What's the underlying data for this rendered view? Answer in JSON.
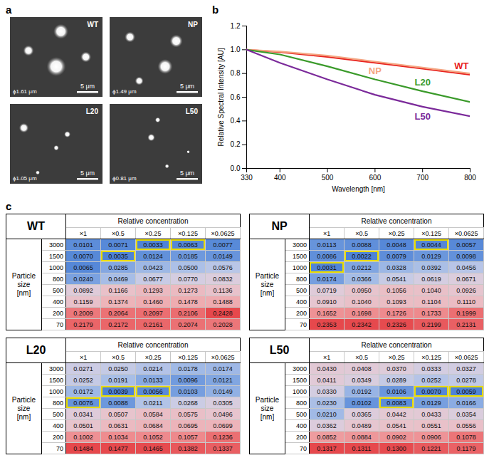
{
  "panel_labels": [
    "a",
    "b",
    "c"
  ],
  "panel_a": {
    "images": [
      {
        "name": "WT",
        "diameter": "ϕ1.61 μm",
        "scale_bar": "5 μm"
      },
      {
        "name": "NP",
        "diameter": "ϕ1.49 μm",
        "scale_bar": "5 μm"
      },
      {
        "name": "L20",
        "diameter": "ϕ1.05 μm",
        "scale_bar": "5 μm"
      },
      {
        "name": "L50",
        "diameter": "ϕ0.81 μm",
        "scale_bar": "5 μm"
      }
    ]
  },
  "chart_data": {
    "type": "line",
    "xlabel": "Wavelength [nm]",
    "ylabel": "Relative Spectral Intensity [AU]",
    "x": [
      330,
      400,
      500,
      600,
      700,
      800
    ],
    "xlim": [
      330,
      800
    ],
    "xticks": [
      330,
      400,
      500,
      600,
      700,
      800
    ],
    "ylim": [
      0,
      1.2
    ],
    "yticks": [
      {
        "value": 0,
        "label": "0.0"
      },
      0.2,
      0.4,
      0.6,
      0.8,
      {
        "value": 1,
        "label": "1.0"
      },
      1.2
    ],
    "grid": false,
    "series": [
      {
        "name": "WT",
        "color": "#e8231f",
        "values": [
          1.0,
          0.98,
          0.94,
          0.89,
          0.84,
          0.79
        ]
      },
      {
        "name": "NP",
        "color": "#f4a582",
        "values": [
          1.0,
          0.985,
          0.95,
          0.9,
          0.85,
          0.8
        ]
      },
      {
        "name": "L20",
        "color": "#3a9a2a",
        "values": [
          1.0,
          0.96,
          0.86,
          0.75,
          0.65,
          0.56
        ]
      },
      {
        "name": "L50",
        "color": "#7b2a9a",
        "values": [
          1.0,
          0.89,
          0.75,
          0.62,
          0.52,
          0.44
        ]
      }
    ]
  },
  "panel_c": {
    "column_header": "Relative concentration",
    "columns": [
      "×1",
      "×0.5",
      "×0.25",
      "×0.125",
      "×0.0625"
    ],
    "row_header": "Particle size [nm]",
    "rows": [
      "3000",
      "1500",
      "1000",
      "800",
      "500",
      "400",
      "200",
      "70"
    ],
    "tables": [
      {
        "title": "WT",
        "cells": [
          [
            "0.0101",
            "0.0071",
            "0.0033",
            "0.0063",
            "0.0077"
          ],
          [
            "0.0070",
            "0.0035",
            "0.0124",
            "0.0185",
            "0.0149"
          ],
          [
            "0.0065",
            "0.0285",
            "0.0423",
            "0.0500",
            "0.0576"
          ],
          [
            "0.0240",
            "0.0469",
            "0.0677",
            "0.0770",
            "0.0832"
          ],
          [
            "0.0892",
            "0.1166",
            "0.1293",
            "0.1273",
            "0.1136"
          ],
          [
            "0.1159",
            "0.1374",
            "0.1460",
            "0.1478",
            "0.1488"
          ],
          [
            "0.2009",
            "0.2064",
            "0.2097",
            "0.2106",
            "0.2428"
          ],
          [
            "0.2179",
            "0.2172",
            "0.2161",
            "0.2074",
            "0.2028"
          ]
        ],
        "highlighted": [
          [
            1,
            1
          ],
          [
            0,
            2
          ],
          [
            0,
            3
          ]
        ]
      },
      {
        "title": "NP",
        "cells": [
          [
            "0.0113",
            "0.0088",
            "0.0048",
            "0.0044",
            "0.0057"
          ],
          [
            "0.0086",
            "0.0022",
            "0.0079",
            "0.0129",
            "0.0098"
          ],
          [
            "0.0031",
            "0.0212",
            "0.0328",
            "0.0392",
            "0.0456"
          ],
          [
            "0.0174",
            "0.0366",
            "0.0541",
            "0.0619",
            "0.0671"
          ],
          [
            "0.0719",
            "0.0950",
            "0.1056",
            "0.1040",
            "0.0926"
          ],
          [
            "0.0910",
            "0.1040",
            "0.1093",
            "0.1104",
            "0.1110"
          ],
          [
            "0.1652",
            "0.1698",
            "0.1726",
            "0.1733",
            "0.1999"
          ],
          [
            "0.2353",
            "0.2342",
            "0.2326",
            "0.2199",
            "0.2131"
          ]
        ],
        "highlighted": [
          [
            0,
            3
          ],
          [
            1,
            1
          ],
          [
            2,
            0
          ]
        ]
      },
      {
        "title": "L20",
        "cells": [
          [
            "0.0271",
            "0.0250",
            "0.0214",
            "0.0178",
            "0.0174"
          ],
          [
            "0.0252",
            "0.0191",
            "0.0133",
            "0.0096",
            "0.0121"
          ],
          [
            "0.0172",
            "0.0039",
            "0.0056",
            "0.0103",
            "0.0149"
          ],
          [
            "0.0076",
            "0.0088",
            "0.0211",
            "0.0268",
            "0.0305"
          ],
          [
            "0.0341",
            "0.0507",
            "0.0584",
            "0.0575",
            "0.0496"
          ],
          [
            "0.0501",
            "0.0631",
            "0.0684",
            "0.0695",
            "0.0699"
          ],
          [
            "0.1002",
            "0.1034",
            "0.1052",
            "0.1057",
            "0.1236"
          ],
          [
            "0.1484",
            "0.1477",
            "0.1465",
            "0.1382",
            "0.1337"
          ]
        ],
        "highlighted": [
          [
            2,
            1
          ],
          [
            2,
            2
          ],
          [
            3,
            0
          ]
        ]
      },
      {
        "title": "L50",
        "cells": [
          [
            "0.0430",
            "0.0408",
            "0.0370",
            "0.0333",
            "0.0327"
          ],
          [
            "0.0411",
            "0.0349",
            "0.0289",
            "0.0252",
            "0.0278"
          ],
          [
            "0.0330",
            "0.0192",
            "0.0106",
            "0.0070",
            "0.0059"
          ],
          [
            "0.0230",
            "0.0102",
            "0.0083",
            "0.0129",
            "0.0166"
          ],
          [
            "0.0210",
            "0.0365",
            "0.0442",
            "0.0433",
            "0.0354"
          ],
          [
            "0.0362",
            "0.0489",
            "0.0541",
            "0.0551",
            "0.0556"
          ],
          [
            "0.0852",
            "0.0884",
            "0.0902",
            "0.0906",
            "0.1078"
          ],
          [
            "0.1317",
            "0.1311",
            "0.1300",
            "0.1221",
            "0.1179"
          ]
        ],
        "highlighted": [
          [
            3,
            2
          ],
          [
            2,
            3
          ],
          [
            2,
            4
          ]
        ]
      }
    ]
  }
}
